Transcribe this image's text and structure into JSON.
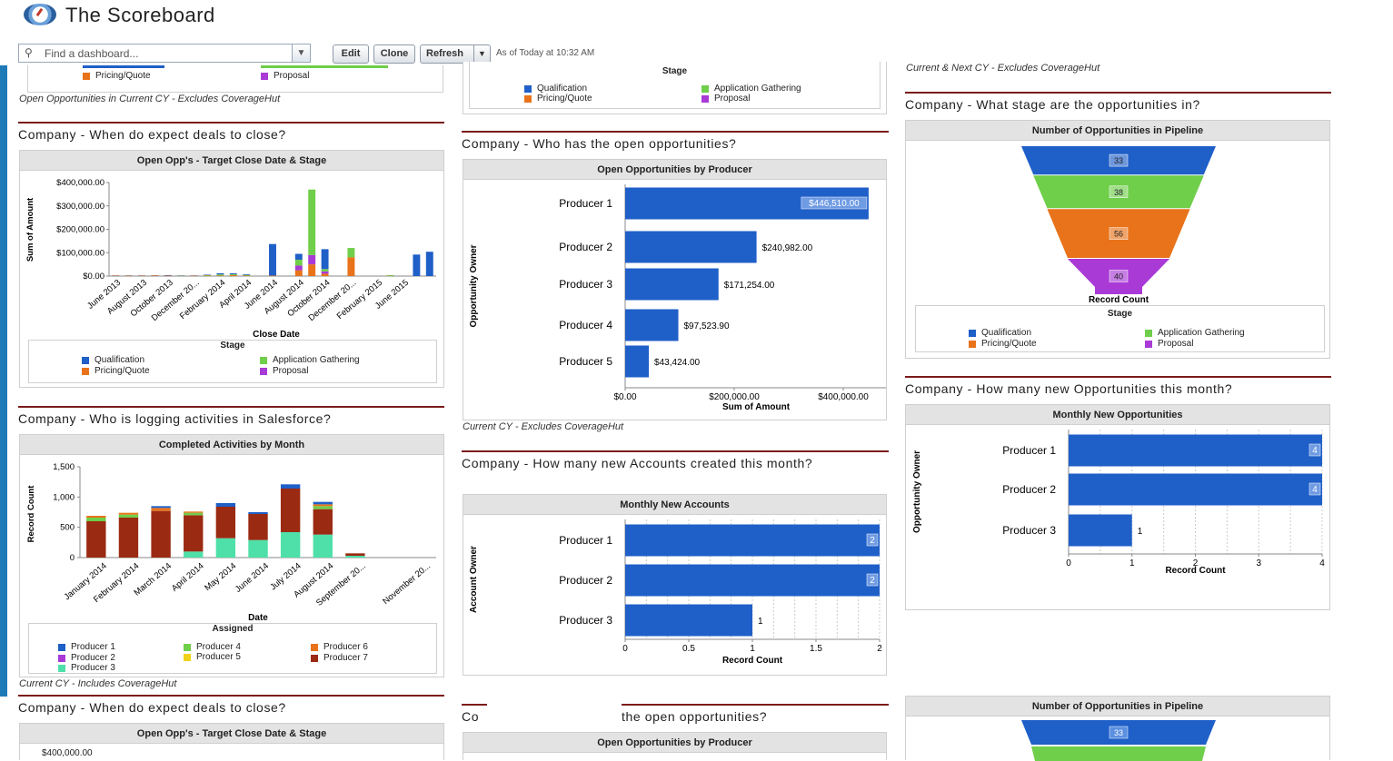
{
  "app": {
    "title": "The Scoreboard"
  },
  "toolbar": {
    "search_placeholder": "Find a dashboard...",
    "edit": "Edit",
    "clone": "Clone",
    "refresh": "Refresh",
    "as_of": "As of Today at 10:32 AM"
  },
  "colors": {
    "qualification": "#1f5fc8",
    "application_gathering": "#6fce4a",
    "pricing_quote": "#e8731a",
    "proposal": "#a93ad6",
    "producer1": "#1f5fc8",
    "producer2": "#a93ad6",
    "producer3": "#4ee0a8",
    "producer4": "#6fce4a",
    "producer5": "#f0d21a",
    "producer6": "#e8731a",
    "producer7": "#9b2a12",
    "bar_blue": "#1f5fc8"
  },
  "stage_legend": {
    "title": "Stage",
    "items": [
      "Qualification",
      "Pricing/Quote",
      "Application Gathering",
      "Proposal"
    ]
  },
  "col1": {
    "top_legend_partial": [
      "Pricing/Quote",
      "Proposal"
    ],
    "top_footnote": "Open Opportunities in Current CY - Excludes CoverageHut",
    "sec1_title": "Company - When do expect deals to close?",
    "sec1_panel": "Open Opp's - Target Close Date & Stage",
    "sec1_ylabel": "Sum of Amount",
    "sec1_xlabel": "Close Date",
    "sec1_yticks": [
      "$0.00",
      "$100,000.00",
      "$200,000.00",
      "$300,000.00",
      "$400,000.00"
    ],
    "sec1_xticks": [
      "June 2013",
      "August 2013",
      "October 2013",
      "December 20...",
      "February 2014",
      "April 2014",
      "June 2014",
      "August 2014",
      "October 2014",
      "December 20...",
      "February 2015",
      "June 2015"
    ],
    "sec2_title": "Company - Who is logging activities in Salesforce?",
    "sec2_panel": "Completed Activities by Month",
    "sec2_ylabel": "Record Count",
    "sec2_xlabel": "Date",
    "sec2_yticks": [
      "0",
      "500",
      "1,000",
      "1,500"
    ],
    "sec2_xticks": [
      "January 2014",
      "February 2014",
      "March 2014",
      "April 2014",
      "May 2014",
      "June 2014",
      "July 2014",
      "August 2014",
      "September 20...",
      "November 20..."
    ],
    "assigned_legend": {
      "title": "Assigned",
      "items": [
        "Producer 1",
        "Producer 2",
        "Producer 3",
        "Producer 4",
        "Producer 5",
        "Producer 6",
        "Producer 7"
      ]
    },
    "sec2_footnote": "Current CY - Includes CoverageHut",
    "sec3_title": "Company - When do expect deals to close?",
    "sec3_panel": "Open Opp's - Target Close Date & Stage",
    "sec3_ytick": "$400,000.00"
  },
  "col2": {
    "sec1_title": "Company - Who has the open opportunities?",
    "sec1_panel": "Open Opportunities by Producer",
    "sec1_ylabel": "Opportunity Owner",
    "sec1_xlabel": "Sum of Amount",
    "sec1_xticks": [
      "$0.00",
      "$200,000.00",
      "$400,000.00"
    ],
    "sec1_footnote": "Current CY - Excludes CoverageHut",
    "sec2_title": "Company - How many new Accounts created this month?",
    "sec2_panel": "Monthly New Accounts",
    "sec2_ylabel": "Account Owner",
    "sec2_xlabel": "Record Count",
    "sec2_xticks": [
      "0",
      "0.5",
      "1",
      "1.5",
      "2"
    ],
    "sec3_title_left": "Co",
    "sec3_title_right": "the open opportunities?",
    "sec3_panel": "Open Opportunities by Producer"
  },
  "col3": {
    "top_footnote": "Current & Next CY - Excludes CoverageHut",
    "sec1_title": "Company - What stage are the opportunities in?",
    "sec1_panel": "Number of Opportunities in Pipeline",
    "funnel_label": "Record Count",
    "sec2_title": "Company - How many new Opportunities this month?",
    "sec2_panel": "Monthly New Opportunities",
    "sec2_ylabel": "Opportunity Owner",
    "sec2_xlabel": "Record Count",
    "sec2_xticks": [
      "0",
      "1",
      "2",
      "3",
      "4"
    ],
    "sec3_panel": "Number of Opportunities in Pipeline",
    "sec3_first": "33"
  },
  "chart_data": [
    {
      "type": "bar",
      "title": "Open Opp's - Target Close Date & Stage",
      "xlabel": "Close Date",
      "ylabel": "Sum of Amount",
      "ylim": [
        0,
        400000
      ],
      "stacked": true,
      "categories": [
        "Jun 2013",
        "Jul 2013",
        "Aug 2013",
        "Sep 2013",
        "Oct 2013",
        "Nov 2013",
        "Dec 2013",
        "Jan 2014",
        "Feb 2014",
        "Mar 2014",
        "Apr 2014",
        "May 2014",
        "Jun 2014",
        "Jul 2014",
        "Aug 2014",
        "Sep 2014",
        "Oct 2014",
        "Nov 2014",
        "Dec 2014",
        "Jan 2015",
        "Feb 2015",
        "Mar 2015",
        "Apr 2015",
        "May 2015",
        "Jun 2015"
      ],
      "series": [
        {
          "name": "Qualification",
          "values": [
            1000,
            1000,
            1000,
            1000,
            2000,
            1000,
            1000,
            2000,
            5000,
            4000,
            3000,
            0,
            135000,
            0,
            25000,
            0,
            85000,
            0,
            0,
            0,
            0,
            0,
            0,
            92000,
            104000
          ]
        },
        {
          "name": "Application Gathering",
          "values": [
            0,
            0,
            0,
            0,
            0,
            1000,
            0,
            2000,
            5000,
            4000,
            3000,
            0,
            0,
            0,
            25000,
            280000,
            10000,
            0,
            40000,
            0,
            0,
            3000,
            0,
            0,
            0
          ]
        },
        {
          "name": "Pricing/Quote",
          "values": [
            2000,
            2000,
            2000,
            3000,
            2000,
            1000,
            2000,
            2000,
            2000,
            4000,
            2000,
            0,
            2000,
            0,
            25000,
            50000,
            10000,
            0,
            80000,
            0,
            0,
            1000,
            0,
            0,
            0
          ]
        },
        {
          "name": "Proposal",
          "values": [
            0,
            0,
            0,
            0,
            0,
            0,
            0,
            0,
            0,
            0,
            0,
            0,
            0,
            0,
            20000,
            40000,
            10000,
            0,
            0,
            0,
            0,
            0,
            0,
            0,
            0
          ]
        }
      ],
      "legend": "bottom"
    },
    {
      "type": "bar",
      "title": "Completed Activities by Month",
      "xlabel": "Date",
      "ylabel": "Record Count",
      "ylim": [
        0,
        1500
      ],
      "stacked": true,
      "categories": [
        "January 2014",
        "February 2014",
        "March 2014",
        "April 2014",
        "May 2014",
        "June 2014",
        "July 2014",
        "August 2014",
        "September 2014",
        "October 2014",
        "November 2014"
      ],
      "series": [
        {
          "name": "Producer 3",
          "values": [
            0,
            0,
            0,
            100,
            320,
            290,
            420,
            380,
            30,
            0,
            0
          ]
        },
        {
          "name": "Producer 7",
          "values": [
            600,
            660,
            770,
            600,
            520,
            430,
            720,
            420,
            40,
            0,
            0
          ]
        },
        {
          "name": "Producer 4",
          "values": [
            60,
            50,
            0,
            40,
            0,
            0,
            0,
            50,
            0,
            0,
            0
          ]
        },
        {
          "name": "Producer 6",
          "values": [
            30,
            30,
            50,
            20,
            0,
            0,
            0,
            30,
            0,
            0,
            0
          ]
        },
        {
          "name": "Producer 1",
          "values": [
            0,
            0,
            30,
            0,
            60,
            30,
            70,
            40,
            0,
            0,
            0
          ]
        }
      ],
      "legend": "bottom"
    },
    {
      "type": "bar",
      "orientation": "horizontal",
      "title": "Open Opportunities by Producer",
      "xlabel": "Sum of Amount",
      "ylabel": "Opportunity Owner",
      "xlim": [
        0,
        480000
      ],
      "categories": [
        "Producer 1",
        "Producer 2",
        "Producer 3",
        "Producer 4",
        "Producer 5"
      ],
      "values": [
        446510,
        240982,
        171254,
        97523.9,
        43424
      ],
      "labels": [
        "$446,510.00",
        "$240,982.00",
        "$171,254.00",
        "$97,523.90",
        "$43,424.00"
      ]
    },
    {
      "type": "bar",
      "orientation": "horizontal",
      "title": "Monthly New Accounts",
      "xlabel": "Record Count",
      "ylabel": "Account Owner",
      "xlim": [
        0,
        2
      ],
      "categories": [
        "Producer 1",
        "Producer 2",
        "Producer 3"
      ],
      "values": [
        2,
        2,
        1
      ]
    },
    {
      "type": "funnel",
      "title": "Number of Opportunities in Pipeline",
      "label": "Record Count",
      "categories": [
        "Qualification",
        "Application Gathering",
        "Pricing/Quote",
        "Proposal"
      ],
      "values": [
        33,
        38,
        56,
        40
      ],
      "legend": "bottom"
    },
    {
      "type": "bar",
      "orientation": "horizontal",
      "title": "Monthly New Opportunities",
      "xlabel": "Record Count",
      "ylabel": "Opportunity Owner",
      "xlim": [
        0,
        4
      ],
      "categories": [
        "Producer 1",
        "Producer 2",
        "Producer 3"
      ],
      "values": [
        4,
        4,
        1
      ]
    }
  ]
}
